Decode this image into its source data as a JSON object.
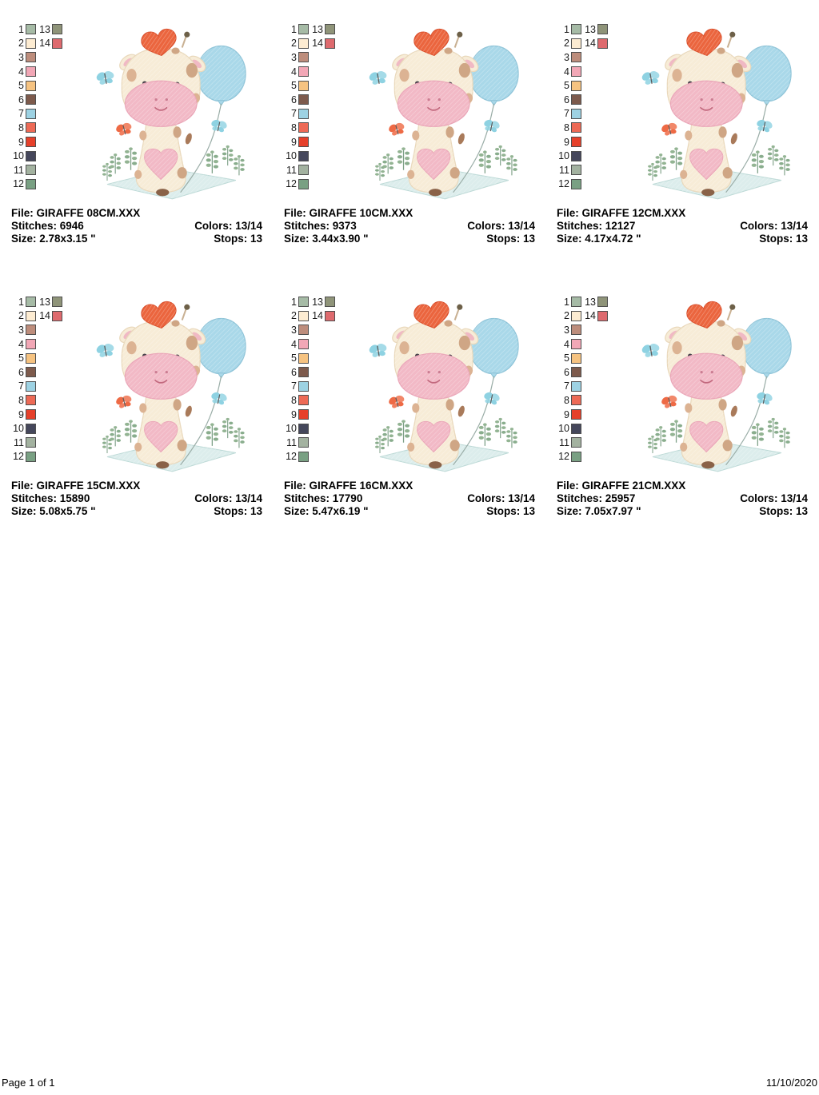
{
  "page": {
    "footer_left": "Page 1 of 1",
    "footer_right": "11/10/2020",
    "background": "#ffffff"
  },
  "labels": {
    "file": "File:",
    "stitches": "Stitches:",
    "colors": "Colors:",
    "size": "Size:",
    "stops": "Stops:"
  },
  "palette": {
    "swatch_border": "#4f4f4f",
    "column1": [
      {
        "num": "1",
        "color": "#a6bba6"
      },
      {
        "num": "2",
        "color": "#fdecd2"
      },
      {
        "num": "3",
        "color": "#bd8d7c"
      },
      {
        "num": "4",
        "color": "#f2a7b6"
      },
      {
        "num": "5",
        "color": "#f6c381"
      },
      {
        "num": "6",
        "color": "#7d5a4c"
      },
      {
        "num": "7",
        "color": "#9dd2e3"
      },
      {
        "num": "8",
        "color": "#ed6a56"
      },
      {
        "num": "9",
        "color": "#e6402a"
      },
      {
        "num": "10",
        "color": "#45475b"
      },
      {
        "num": "11",
        "color": "#a3b2a0"
      },
      {
        "num": "12",
        "color": "#79a083"
      }
    ],
    "column2": [
      {
        "num": "13",
        "color": "#8f9479"
      },
      {
        "num": "14",
        "color": "#de6a6e"
      }
    ]
  },
  "design_colors": {
    "body_cream": "#f7ecd7",
    "muzzle_pink": "#f2b9c6",
    "hair_heart_orange": "#eb653e",
    "balloon_blue": "#a9d8e9",
    "spot_brown": "#cfa685",
    "butterfly_blue": "#8ed2e2",
    "butterfly_orange": "#ee6a45",
    "plant_green": "#8fae8f",
    "mat_blue": "#dcedec"
  },
  "designs": [
    {
      "file": "GIRAFFE 08CM.XXX",
      "stitches": "6946",
      "colors": "13/14",
      "size": "2.78x3.15 \"",
      "stops": "13"
    },
    {
      "file": "GIRAFFE 10CM.XXX",
      "stitches": "9373",
      "colors": "13/14",
      "size": "3.44x3.90 \"",
      "stops": "13"
    },
    {
      "file": "GIRAFFE 12CM.XXX",
      "stitches": "12127",
      "colors": "13/14",
      "size": "4.17x4.72 \"",
      "stops": "13"
    },
    {
      "file": "GIRAFFE 15CM.XXX",
      "stitches": "15890",
      "colors": "13/14",
      "size": "5.08x5.75 \"",
      "stops": "13"
    },
    {
      "file": "GIRAFFE 16CM.XXX",
      "stitches": "17790",
      "colors": "13/14",
      "size": "5.47x6.19 \"",
      "stops": "13"
    },
    {
      "file": "GIRAFFE 21CM.XXX",
      "stitches": "25957",
      "colors": "13/14",
      "size": "7.05x7.97 \"",
      "stops": "13"
    }
  ]
}
